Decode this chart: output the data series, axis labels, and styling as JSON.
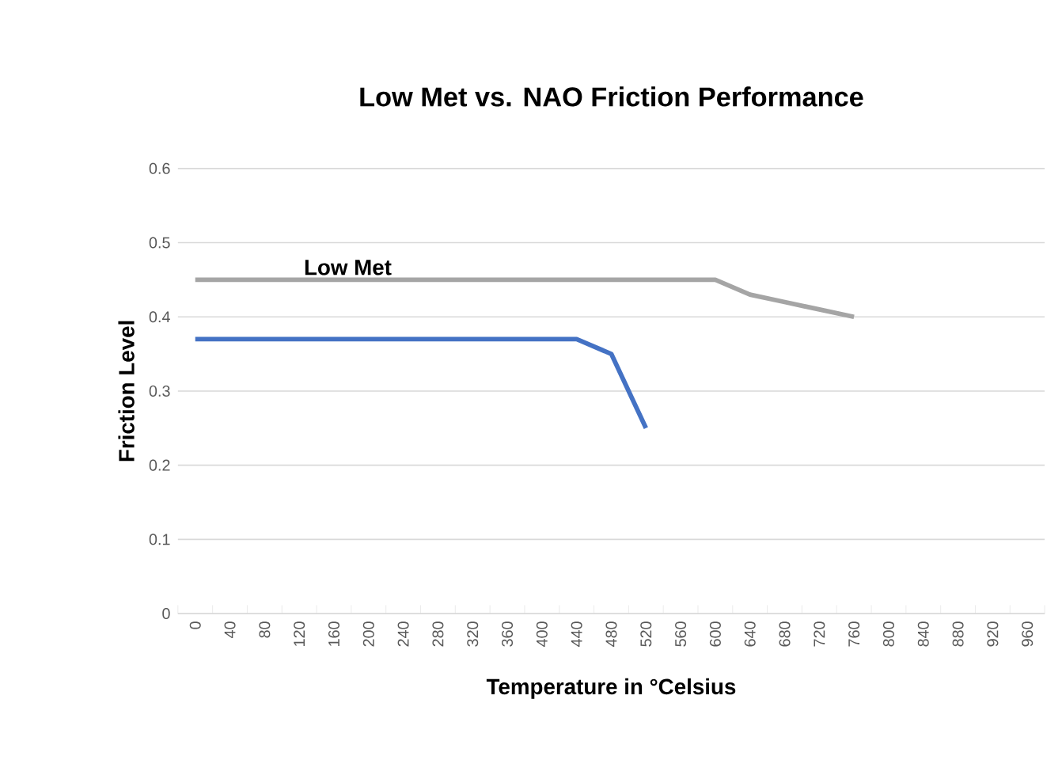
{
  "chart_data": {
    "type": "line",
    "title": "Low Met vs. NAO Friction Performance",
    "xlabel": "Temperature in °Celsius",
    "ylabel": "Friction Level",
    "categories": [
      "0",
      "40",
      "80",
      "120",
      "160",
      "200",
      "240",
      "280",
      "320",
      "360",
      "400",
      "440",
      "480",
      "520",
      "560",
      "600",
      "640",
      "680",
      "720",
      "760",
      "800",
      "840",
      "880",
      "920",
      "960"
    ],
    "series": [
      {
        "name": "Low Met",
        "color": "#a5a5a5",
        "values": [
          0.45,
          0.45,
          0.45,
          0.45,
          0.45,
          0.45,
          0.45,
          0.45,
          0.45,
          0.45,
          0.45,
          0.45,
          0.45,
          0.45,
          0.45,
          0.45,
          0.43,
          0.42,
          0.41,
          0.4,
          null,
          null,
          null,
          null,
          null
        ]
      },
      {
        "color": "#4472c4",
        "values": [
          0.37,
          0.37,
          0.37,
          0.37,
          0.37,
          0.37,
          0.37,
          0.37,
          0.37,
          0.37,
          0.37,
          0.37,
          0.35,
          0.25,
          null,
          null,
          null,
          null,
          null,
          null,
          null,
          null,
          null,
          null,
          null
        ]
      }
    ],
    "ylim": [
      0,
      0.6
    ],
    "yticks": [
      0,
      0.1,
      0.2,
      0.3,
      0.4,
      0.5,
      0.6
    ],
    "grid": "y",
    "legend": false,
    "marker": "none",
    "line_style": "solid"
  }
}
